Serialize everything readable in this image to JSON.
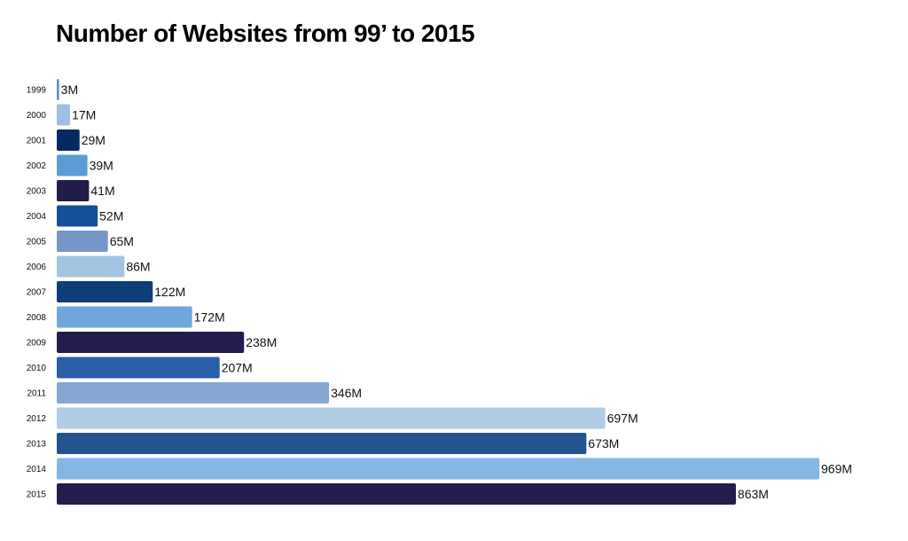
{
  "chart_data": {
    "type": "bar",
    "orientation": "horizontal",
    "title": "Number of Websites from 99’ to 2015",
    "xlabel": "",
    "ylabel": "",
    "value_unit": "M",
    "xlim": [
      0,
      969
    ],
    "grid": false,
    "legend": "none",
    "categories": [
      "1999",
      "2000",
      "2001",
      "2002",
      "2003",
      "2004",
      "2005",
      "2006",
      "2007",
      "2008",
      "2009",
      "2010",
      "2011",
      "2012",
      "2013",
      "2014",
      "2015"
    ],
    "values": [
      3,
      17,
      29,
      39,
      41,
      52,
      65,
      86,
      122,
      172,
      238,
      207,
      346,
      697,
      673,
      969,
      863
    ],
    "data_labels": [
      "3M",
      "17M",
      "29M",
      "39M",
      "41M",
      "52M",
      "65M",
      "86M",
      "122M",
      "172M",
      "238M",
      "207M",
      "346M",
      "697M",
      "673M",
      "969M",
      "863M"
    ],
    "colors": [
      "#5b8fd0",
      "#9dbfe2",
      "#042a61",
      "#5a9bd6",
      "#211c4a",
      "#164f99",
      "#7596c6",
      "#a2c4e3",
      "#0f3d7a",
      "#6fa6dc",
      "#231d4d",
      "#2a5ea8",
      "#86a7d1",
      "#b1cde6",
      "#23548f",
      "#83b6e3",
      "#241d4e"
    ]
  }
}
